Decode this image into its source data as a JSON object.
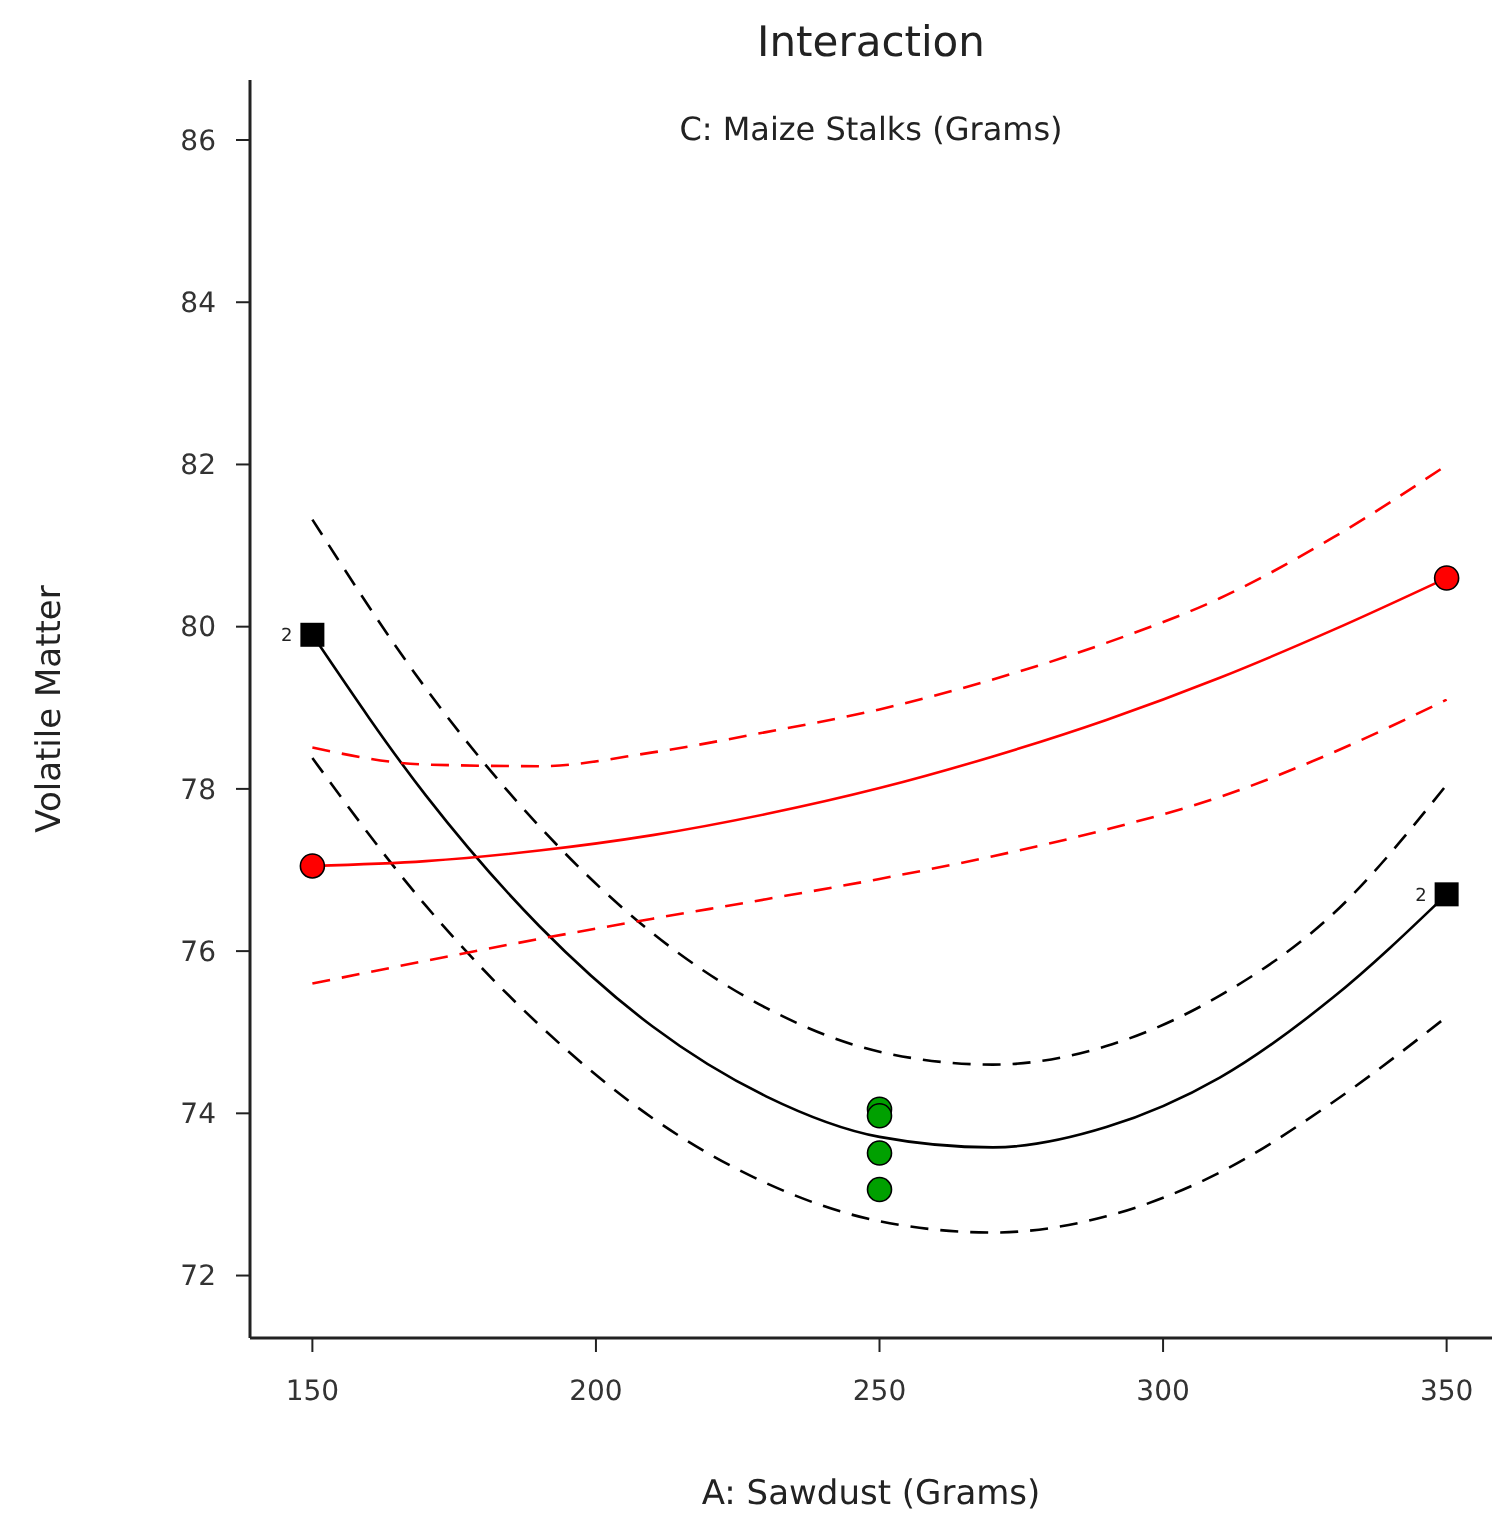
{
  "chart_data": {
    "type": "line",
    "title": "Interaction",
    "subtitle": "C: Maize Stalks (Grams)",
    "xlabel": "A: Sawdust (Grams)",
    "ylabel": "Volatile Matter",
    "xlim": [
      139,
      358
    ],
    "ylim": [
      71.23,
      86.74
    ],
    "xticks": [
      150,
      200,
      250,
      300,
      350
    ],
    "yticks": [
      72,
      74,
      76,
      78,
      80,
      82,
      84,
      86
    ],
    "grid": false,
    "series": [
      {
        "color": "#000000",
        "line_style": "solid",
        "marker": "none",
        "x": [
          150,
          170,
          190,
          210,
          230,
          250,
          270,
          290,
          310,
          330,
          350
        ],
        "values": [
          79.9,
          77.92,
          76.31,
          75.07,
          74.21,
          73.71,
          73.58,
          73.83,
          74.44,
          75.43,
          76.7
        ]
      },
      {
        "type": "line",
        "color": "#000000",
        "line_style": "dashed",
        "marker": "none",
        "x": [
          150,
          170,
          190,
          210,
          230,
          250,
          270,
          290,
          310,
          330,
          350
        ],
        "values": [
          81.32,
          79.24,
          77.54,
          76.22,
          75.3,
          74.76,
          74.6,
          74.83,
          75.45,
          76.46,
          78.05
        ]
      },
      {
        "type": "line",
        "color": "#000000",
        "line_style": "dashed",
        "marker": "none",
        "x": [
          150,
          170,
          190,
          210,
          230,
          250,
          270,
          290,
          310,
          330,
          350
        ],
        "values": [
          78.38,
          76.56,
          75.09,
          73.94,
          73.14,
          72.67,
          72.53,
          72.73,
          73.27,
          74.14,
          75.19
        ]
      },
      {
        "color": "#ff0000",
        "line_style": "solid",
        "marker": "none",
        "x": [
          150,
          170,
          190,
          210,
          230,
          250,
          270,
          290,
          310,
          330,
          350
        ],
        "values": [
          77.05,
          77.11,
          77.24,
          77.43,
          77.69,
          78.01,
          78.4,
          78.85,
          79.37,
          79.96,
          80.6
        ]
      },
      {
        "type": "line",
        "color": "#ff0000",
        "line_style": "dashed",
        "marker": "none",
        "x": [
          150,
          170,
          190,
          210,
          230,
          250,
          270,
          290,
          310,
          330,
          350
        ],
        "values": [
          78.51,
          78.3,
          78.28,
          78.45,
          78.7,
          78.98,
          79.35,
          79.8,
          80.35,
          81.1,
          81.99
        ]
      },
      {
        "type": "line",
        "color": "#ff0000",
        "line_style": "dashed",
        "marker": "none",
        "x": [
          150,
          170,
          190,
          210,
          230,
          250,
          270,
          290,
          310,
          330,
          350
        ],
        "values": [
          75.6,
          75.88,
          76.15,
          76.4,
          76.64,
          76.89,
          77.17,
          77.5,
          77.9,
          78.45,
          79.1
        ]
      },
      {
        "type": "scatter",
        "color": "#000000",
        "marker": "square",
        "x": [
          150,
          350
        ],
        "values": [
          79.9,
          76.7
        ]
      },
      {
        "type": "scatter",
        "color": "#ff0000",
        "marker": "circle",
        "x": [
          150,
          350
        ],
        "values": [
          77.05,
          80.6
        ]
      },
      {
        "type": "scatter",
        "color": "#00a000",
        "marker": "circle",
        "x": [
          250,
          250,
          250,
          250
        ],
        "values": [
          74.05,
          73.97,
          73.51,
          73.06
        ]
      }
    ],
    "annotations": [
      {
        "text": "2",
        "x": 150,
        "y": 79.9
      },
      {
        "text": "2",
        "x": 350,
        "y": 76.7
      }
    ]
  }
}
